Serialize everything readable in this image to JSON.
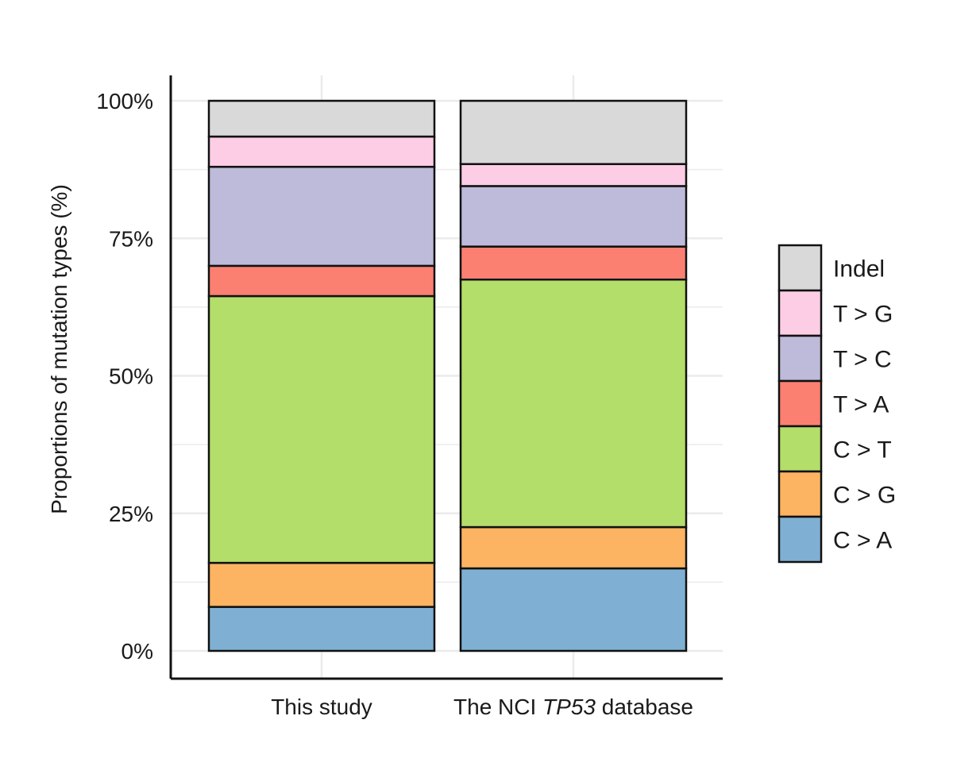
{
  "chart_data": {
    "type": "bar",
    "stacked": true,
    "title": "",
    "xlabel": "",
    "ylabel": "Proportions of mutation types (%)",
    "ylim": [
      0,
      100
    ],
    "yticks": [
      0,
      25,
      50,
      75,
      100
    ],
    "ytick_labels": [
      "0%",
      "25%",
      "50%",
      "75%",
      "100%"
    ],
    "grid": true,
    "legend_position": "right",
    "categories": [
      {
        "prefix": "This study",
        "italic": "",
        "suffix": ""
      },
      {
        "prefix": "The NCI ",
        "italic": "TP53",
        "suffix": " database"
      }
    ],
    "series": [
      {
        "name": "C > A",
        "color": "#7fb0d3",
        "values": [
          8,
          15
        ]
      },
      {
        "name": "C > G",
        "color": "#fcb462",
        "values": [
          8,
          7.5
        ]
      },
      {
        "name": "C > T",
        "color": "#b3de69",
        "values": [
          48.5,
          45
        ]
      },
      {
        "name": "T > A",
        "color": "#fb8072",
        "values": [
          5.5,
          6
        ]
      },
      {
        "name": "T > C",
        "color": "#bebada",
        "values": [
          18,
          11
        ]
      },
      {
        "name": "T > G",
        "color": "#fccde5",
        "values": [
          5.5,
          4
        ]
      },
      {
        "name": "Indel",
        "color": "#d9d9d9",
        "values": [
          6.5,
          11.5
        ]
      }
    ],
    "legend_order": [
      "Indel",
      "T > G",
      "T > C",
      "T > A",
      "C > T",
      "C > G",
      "C > A"
    ]
  }
}
